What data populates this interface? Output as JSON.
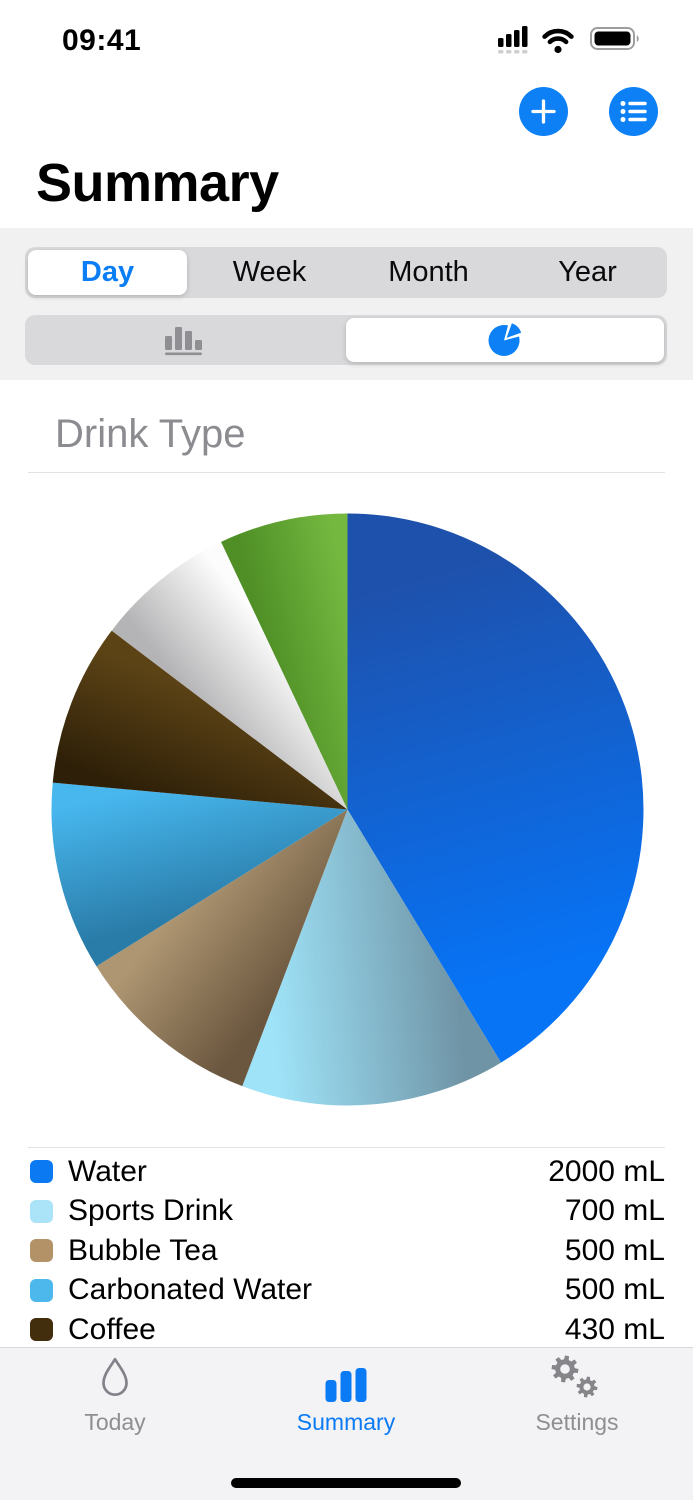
{
  "status_bar": {
    "time": "09:41"
  },
  "nav": {
    "add_button_icon": "plus-icon",
    "list_button_icon": "list-bullet-icon"
  },
  "header": {
    "title": "Summary"
  },
  "period_tabs": {
    "options": [
      "Day",
      "Week",
      "Month",
      "Year"
    ],
    "selected_index": 0,
    "selected_label": "Day"
  },
  "chart_type_tabs": {
    "options": [
      "bar-chart-icon",
      "pie-chart-icon"
    ],
    "selected_index": 1
  },
  "section": {
    "title": "Drink Type"
  },
  "chart_data": {
    "type": "pie",
    "title": "Drink Type",
    "unit": "mL",
    "legend_position": "bottom-list",
    "legend_clipped_by_tab_bar": true,
    "segments": [
      {
        "label": "Water",
        "value": 2000,
        "display_value": "2000 mL",
        "swatch_color": "#0b79f2",
        "gradient": [
          "#1e51ac",
          "#0773f5"
        ],
        "in_legend": true
      },
      {
        "label": "Sports Drink",
        "value": 700,
        "display_value": "700 mL",
        "swatch_color": "#abe3f8",
        "gradient": [
          "#6f94a6",
          "#9fe3f8"
        ],
        "in_legend": true
      },
      {
        "label": "Bubble Tea",
        "value": 500,
        "display_value": "500 mL",
        "swatch_color": "#b39268",
        "gradient": [
          "#6b573f",
          "#ae9672"
        ],
        "in_legend": true
      },
      {
        "label": "Carbonated Water",
        "value": 500,
        "display_value": "500 mL",
        "swatch_color": "#4db8ec",
        "gradient": [
          "#2a7ca8",
          "#47b7ee"
        ],
        "in_legend": true
      },
      {
        "label": "Coffee",
        "value": 430,
        "display_value": "430 mL",
        "swatch_color": "#422e0d",
        "gradient": [
          "#2e2008",
          "#5c4316"
        ],
        "in_legend": true
      },
      {
        "label": "",
        "value": 370,
        "display_value": "",
        "value_estimated_from_angle": true,
        "swatch_color": "#d9d9db",
        "gradient": [
          "#b4b4b6",
          "#fcfcfc"
        ],
        "in_legend": false
      },
      {
        "label": "",
        "value": 340,
        "display_value": "",
        "value_estimated_from_angle": true,
        "swatch_color": "#61a332",
        "gradient": [
          "#4f8f26",
          "#74b840"
        ],
        "in_legend": false
      }
    ]
  },
  "tab_bar": {
    "items": [
      {
        "label": "Today",
        "icon": "water-drop-icon",
        "active": false
      },
      {
        "label": "Summary",
        "icon": "bar-chart-icon",
        "active": true
      },
      {
        "label": "Settings",
        "icon": "gears-icon",
        "active": false
      }
    ]
  },
  "colors": {
    "accent_blue": "#0c80f4",
    "segment_track": "#d9d9db",
    "band_background": "#f1f1f2",
    "tab_bar_background": "#f3f3f5",
    "secondary_text": "#8e8e93"
  }
}
